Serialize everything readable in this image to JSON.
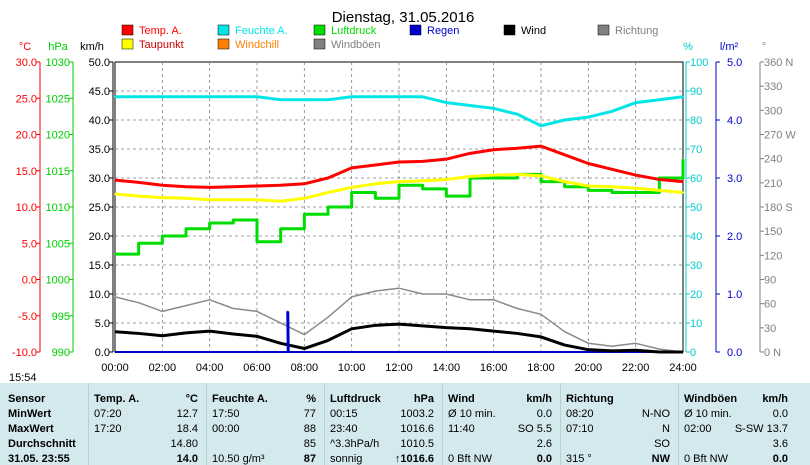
{
  "chart_data": {
    "type": "line",
    "title": "Dienstag, 31.05.2016",
    "x_ticks": [
      "00:00",
      "02:00",
      "04:00",
      "06:00",
      "08:00",
      "10:00",
      "12:00",
      "14:00",
      "16:00",
      "18:00",
      "20:00",
      "22:00",
      "24:00"
    ],
    "axes": [
      {
        "unit": "°C",
        "color": "#ff0000",
        "ticks": [
          "30.0",
          "25.0",
          "20.0",
          "15.0",
          "10.0",
          "5.0",
          "0.0",
          "-5.0",
          "-10.0"
        ],
        "range": [
          -10,
          30
        ]
      },
      {
        "unit": "hPa",
        "color": "#00cc00",
        "ticks": [
          "1030",
          "1025",
          "1020",
          "1015",
          "1010",
          "1005",
          "1000",
          "995",
          "990"
        ],
        "range": [
          990,
          1030
        ]
      },
      {
        "unit": "km/h",
        "color": "#000000",
        "ticks": [
          "50.0",
          "45.0",
          "40.0",
          "35.0",
          "30.0",
          "25.0",
          "20.0",
          "15.0",
          "10.0",
          "5.0",
          "0.0"
        ],
        "range": [
          0,
          50
        ]
      },
      {
        "unit": "%",
        "color": "#00cccc",
        "ticks": [
          "100",
          "90",
          "80",
          "70",
          "60",
          "50",
          "40",
          "30",
          "20",
          "10",
          "0"
        ],
        "range": [
          0,
          100
        ]
      },
      {
        "unit": "l/m²",
        "color": "#0000cc",
        "ticks": [
          "5.0",
          "4.0",
          "3.0",
          "2.0",
          "1.0",
          "0.0"
        ],
        "range": [
          0,
          5
        ]
      },
      {
        "unit": "°",
        "color": "#808080",
        "ticks": [
          "360 N",
          "330",
          "300",
          "270 W",
          "240",
          "210",
          "180 S",
          "150",
          "120",
          "90",
          "60",
          "30",
          "0 N"
        ],
        "range": [
          0,
          360
        ]
      }
    ],
    "legend": [
      {
        "name": "Temp. A.",
        "color": "#ff0000"
      },
      {
        "name": "Feuchte A.",
        "color": "#00e5e5"
      },
      {
        "name": "Luftdruck",
        "color": "#00dd00"
      },
      {
        "name": "Regen",
        "color": "#0000cc"
      },
      {
        "name": "Wind",
        "color": "#000000"
      },
      {
        "name": "Richtung",
        "color": "#808080"
      },
      {
        "name": "Taupunkt",
        "color": "#ffff00"
      },
      {
        "name": "Windchill",
        "color": "#ff8000"
      },
      {
        "name": "Windböen",
        "color": "#808080"
      }
    ],
    "series": [
      {
        "name": "Temp. A.",
        "color": "#ff0000",
        "axis": 0,
        "x": [
          0,
          1,
          2,
          3,
          4,
          5,
          6,
          7,
          8,
          9,
          10,
          11,
          12,
          13,
          14,
          15,
          16,
          17,
          18,
          19,
          20,
          21,
          22,
          23,
          24
        ],
        "y": [
          13.7,
          13.4,
          13.0,
          12.8,
          12.7,
          12.8,
          12.9,
          13.0,
          13.2,
          14.0,
          15.4,
          15.8,
          16.2,
          16.3,
          16.6,
          17.4,
          17.9,
          18.1,
          18.4,
          17.2,
          16.0,
          15.2,
          14.4,
          13.8,
          13.5
        ]
      },
      {
        "name": "Feuchte A.",
        "color": "#00e5e5",
        "axis": 3,
        "x": [
          0,
          1,
          2,
          3,
          4,
          5,
          6,
          7,
          8,
          9,
          10,
          11,
          12,
          13,
          14,
          15,
          16,
          17,
          18,
          19,
          20,
          21,
          22,
          23,
          24
        ],
        "y": [
          88,
          88,
          88,
          88,
          88,
          88,
          88,
          87,
          87,
          87,
          88,
          88,
          88,
          88,
          86,
          85,
          84,
          82,
          78,
          80,
          81,
          83,
          86,
          87,
          88
        ]
      },
      {
        "name": "Taupunkt",
        "color": "#ffff00",
        "axis": 0,
        "x": [
          0,
          1,
          2,
          3,
          4,
          5,
          6,
          7,
          8,
          9,
          10,
          11,
          12,
          13,
          14,
          15,
          16,
          17,
          18,
          19,
          20,
          21,
          22,
          23,
          24
        ],
        "y": [
          11.8,
          11.5,
          11.3,
          11.2,
          11.0,
          11.0,
          11.0,
          10.8,
          11.2,
          12.0,
          12.7,
          13.2,
          13.5,
          13.6,
          13.8,
          14.2,
          14.4,
          14.5,
          14.3,
          13.5,
          12.9,
          12.8,
          12.6,
          12.3,
          12.0
        ]
      },
      {
        "name": "Luftdruck",
        "color": "#00dd00",
        "axis": 1,
        "x": [
          0,
          1,
          2,
          3,
          4,
          5,
          6,
          7,
          8,
          9,
          10,
          11,
          12,
          13,
          14,
          15,
          16,
          17,
          18,
          19,
          20,
          21,
          22,
          23,
          24
        ],
        "y": [
          1003.5,
          1005.0,
          1006.0,
          1007.0,
          1007.8,
          1008.2,
          1005.2,
          1007.0,
          1009.0,
          1010.0,
          1012.0,
          1011.2,
          1013.0,
          1012.5,
          1011.5,
          1014.0,
          1014.0,
          1014.5,
          1013.5,
          1012.8,
          1012.3,
          1012.0,
          1012.0,
          1014.0,
          1016.6
        ]
      },
      {
        "name": "Wind",
        "color": "#000000",
        "axis": 2,
        "x": [
          0,
          1,
          2,
          3,
          4,
          5,
          6,
          7,
          8,
          9,
          10,
          11,
          12,
          13,
          14,
          15,
          16,
          17,
          18,
          19,
          20,
          21,
          22,
          23,
          24
        ],
        "y": [
          3.5,
          3.2,
          2.8,
          3.3,
          3.6,
          3.1,
          2.7,
          1.5,
          0.6,
          2.0,
          4.0,
          4.6,
          4.8,
          4.5,
          4.2,
          4.0,
          3.6,
          3.2,
          2.6,
          1.2,
          0.4,
          0.2,
          0.3,
          0.0,
          0.0
        ]
      },
      {
        "name": "Windböen",
        "color": "#8a8a8a",
        "axis": 2,
        "x": [
          0,
          1,
          2,
          3,
          4,
          5,
          6,
          7,
          8,
          9,
          10,
          11,
          12,
          13,
          14,
          15,
          16,
          17,
          18,
          19,
          20,
          21,
          22,
          23,
          24
        ],
        "y": [
          9.5,
          8.5,
          7.0,
          8.0,
          9.0,
          7.5,
          7.0,
          5.0,
          3.0,
          6.0,
          9.5,
          10.5,
          11.0,
          10.0,
          10.0,
          9.0,
          9.0,
          7.5,
          6.5,
          3.5,
          1.5,
          1.0,
          1.5,
          0.5,
          0.0
        ]
      },
      {
        "name": "Regen",
        "color": "#0000cc",
        "axis": 4,
        "x": [
          7.3,
          7.32
        ],
        "y": [
          0.7,
          0.0
        ]
      }
    ]
  },
  "footer": {
    "time": "15:54",
    "table": {
      "headers": {
        "sensor": "Sensor",
        "temp_name": "Temp. A.",
        "temp_unit": "°C",
        "feuchte_name": "Feuchte A.",
        "feuchte_unit": "%",
        "druck_name": "Luftdruck",
        "druck_unit": "hPa",
        "wind_name": "Wind",
        "wind_unit": "km/h",
        "richtung_name": "Richtung",
        "boeen_name": "Windböen",
        "boeen_unit": "km/h"
      },
      "rows": [
        {
          "label": "MinWert",
          "temp_t": "07:20",
          "temp_v": "12.7",
          "feu_t": "17:50",
          "feu_v": "77",
          "dru_t": "00:15",
          "dru_v": "1003.2",
          "win_t": "Ø 10 min.",
          "win_v": "0.0",
          "ric_t": "08:20",
          "ric_v": "N-NO",
          "boe_t": "Ø 10 min.",
          "boe_v": "0.0"
        },
        {
          "label": "MaxWert",
          "temp_t": "17:20",
          "temp_v": "18.4",
          "feu_t": "00:00",
          "feu_v": "88",
          "dru_t": "23:40",
          "dru_v": "1016.6",
          "win_t": "11:40",
          "win_v": "SO 5.5",
          "ric_t": "07:10",
          "ric_v": "N",
          "boe_t": "02:00",
          "boe_v": "S-SW 13.7"
        },
        {
          "label": "Durchschnitt",
          "temp_t": "",
          "temp_v": "14.80",
          "feu_t": "",
          "feu_v": "85",
          "dru_t": "^3.3hPa/h",
          "dru_v": "1010.5",
          "win_t": "",
          "win_v": "2.6",
          "ric_t": "",
          "ric_v": "SO",
          "boe_t": "",
          "boe_v": "3.6"
        },
        {
          "label": "31.05. 23:55",
          "temp_t": "",
          "temp_v": "14.0",
          "feu_t": "10.50 g/m³",
          "feu_v": "87",
          "dru_t": "sonnig",
          "dru_v": "↑1016.6",
          "win_t": "0 Bft NW",
          "win_v": "0.0",
          "ric_t": "315 °",
          "ric_v": "NW",
          "boe_t": "0 Bft NW",
          "boe_v": "0.0"
        }
      ]
    }
  }
}
